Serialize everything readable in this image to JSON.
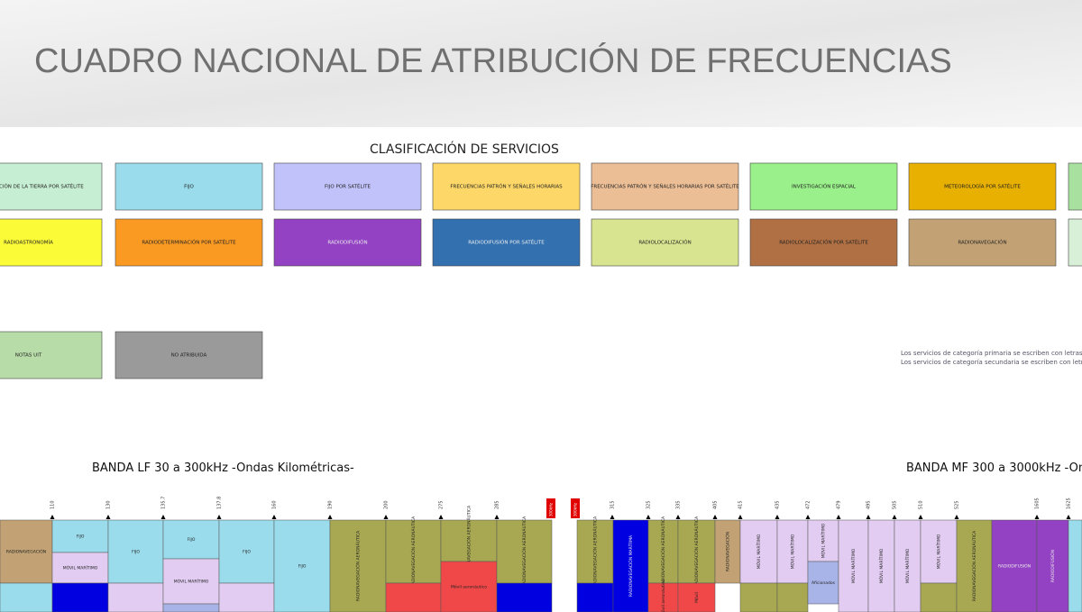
{
  "header": {
    "title": "CUADRO NACIONAL DE ATRIBUCIÓN DE FRECUENCIAS"
  },
  "legend": {
    "title": "CLASIFICACIÓN DE SERVICIOS",
    "items": [
      {
        "label": "ACIÓN DE LA TIERRA POR SATÉLITE",
        "color": "#c6eed2"
      },
      {
        "label": "FIJO",
        "color": "#9adcec"
      },
      {
        "label": "FIJO POR SATÉLITE",
        "color": "#c2c2fa"
      },
      {
        "label": "FRECUENCIAS PATRÓN Y SEÑALES HORARIAS",
        "color": "#fdd868"
      },
      {
        "label": "FRECUENCIAS PATRÓN Y SEÑALES HORARIAS POR SATÉLITE",
        "color": "#ebbe96"
      },
      {
        "label": "INVESTIGACIÓN ESPACIAL",
        "color": "#9af08a"
      },
      {
        "label": "METEOROLOGÍA POR SATÉLITE",
        "color": "#e8b000"
      },
      {
        "color": "#a8e0a0"
      },
      {
        "label": "RADIOASTRONOMÍA",
        "color": "#fbfb38"
      },
      {
        "label": "RADIODETERMINACIÓN POR SATÉLITE",
        "color": "#fb9a22"
      },
      {
        "label": "RADIODIFUSIÓN",
        "color": "#9242c2"
      },
      {
        "label": "RADIODIFUSIÓN POR SATÉLITE",
        "color": "#3270b0"
      },
      {
        "label": "RADIOLOCALIZACIÓN",
        "color": "#d8e490"
      },
      {
        "label": "RADIOLOCALIZACIÓN POR SATÉLITE",
        "color": "#b07044"
      },
      {
        "label": "RADIONAVEGACIÓN",
        "color": "#c2a274"
      },
      {
        "color": "#d8f0d8"
      },
      {
        "label": "NOTAS UIT",
        "color": "#b8dca8"
      },
      {
        "label": "NO ATRIBUIDA",
        "color": "#9a9a9a"
      }
    ]
  },
  "notes": [
    "Los servicios de categoría primaria se escriben con letras MAY",
    "Los servicios de categoría secundaria se escriben con letras mi"
  ],
  "bands": [
    {
      "title": "BANDA LF 30 a 300kHz -Ondas Kilométricas-",
      "ticks": [
        110,
        130,
        135.7,
        137.8,
        160,
        190,
        200,
        275,
        285
      ],
      "marker": "300kHz"
    },
    {
      "title": "BANDA MF 300 a 3000kHz -On",
      "ticks": [
        315,
        325,
        335,
        405,
        415,
        435,
        472,
        479,
        495,
        505,
        510,
        525,
        1605,
        1625
      ],
      "marker": "300kHz"
    }
  ],
  "blocks": [
    {
      "label": "RADIONAVEGACIÓN",
      "color": "#c2a274"
    },
    {
      "color": "#9adcec"
    },
    {
      "label": "FIJO",
      "color": "#9adcec"
    },
    {
      "label": "MÓVIL MARÍTIMO",
      "color": "#e2ccf2"
    },
    {
      "color": "#0000e0"
    },
    {
      "label": "FIJO",
      "color": "#9adcec"
    },
    {
      "color": "#e2ccf2"
    },
    {
      "label": "FIJO",
      "color": "#9adcec"
    },
    {
      "label": "MÓVIL MARÍTIMO",
      "color": "#e2ccf2"
    },
    {
      "color": "#a8b4e8"
    },
    {
      "label": "FIJO",
      "color": "#9adcec"
    },
    {
      "color": "#e2ccf2"
    },
    {
      "label": "FIJO",
      "color": "#9adcec"
    },
    {
      "label": "RADIONAVEGACIÓN AERONÁUTICA",
      "color": "#a8a852"
    },
    {
      "label": "RADIONAVEGACIÓN AERONÁUTICA",
      "color": "#a8a852"
    },
    {
      "color": "#f04848"
    },
    {
      "label": "RADIONAVEGACIÓN AERONÁUTICA",
      "color": "#a8a852"
    },
    {
      "label": "Móvil aeronáutico",
      "color": "#f04848"
    },
    {
      "label": "RADIONAVEGACIÓN AERONÁUTICA",
      "color": "#a8a852"
    },
    {
      "color": "#0000e0"
    },
    {
      "label": "RADIONAVEGACIÓN AERONÁUTICA",
      "color": "#a8a852"
    },
    {
      "color": "#0000e0"
    },
    {
      "label": "RADIONAVEGACIÓN MARÍTIMA",
      "color": "#0000e0"
    },
    {
      "label": "RADIONAVEGACIÓN AERONÁUTICA",
      "color": "#a8a852"
    },
    {
      "label": "Móvil aeronáutico",
      "color": "#f04848"
    },
    {
      "label": "RADIONAVEGACIÓN AERONÁUTICA",
      "color": "#a8a852"
    },
    {
      "label": "Móvil",
      "color": "#f04848"
    },
    {
      "label": "RADIONAVEGACIÓN",
      "color": "#c2a274"
    },
    {
      "label": "MÓVIL MARÍTIMO",
      "color": "#e2ccf2"
    },
    {
      "color": "#a8a852"
    },
    {
      "label": "MÓVIL MARÍTIMO",
      "color": "#e2ccf2"
    },
    {
      "color": "#a8a852"
    },
    {
      "label": "MÓVIL MARÍTIMO",
      "color": "#e2ccf2"
    },
    {
      "label": "Aficionados",
      "color": "#a8b4e8"
    },
    {
      "label": "MÓVIL MARÍTIMO",
      "color": "#e2ccf2"
    },
    {
      "label": "MÓVIL MARÍTIMO",
      "color": "#e2ccf2"
    },
    {
      "label": "MÓVIL MARÍTIMO",
      "color": "#e2ccf2"
    },
    {
      "label": "MÓVIL MARÍTIMO",
      "color": "#e2ccf2"
    },
    {
      "color": "#a8a852"
    },
    {
      "label": "RADIONAVEGACIÓN AERONÁUTICA",
      "color": "#a8a852"
    },
    {
      "label": "RADIODIFUSIÓN",
      "color": "#9242c2"
    },
    {
      "label": "RADIODIFUSIÓN",
      "color": "#9242c2"
    },
    {
      "color": "#9adcec"
    }
  ]
}
